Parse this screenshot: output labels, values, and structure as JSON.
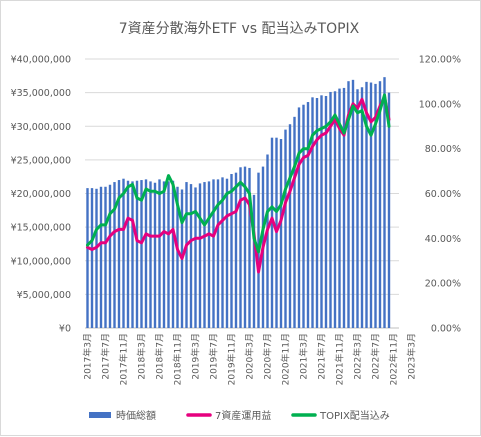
{
  "chart_data": {
    "type": "bar+line",
    "title": "7資産分散海外ETF vs 配当込みTOPIX",
    "y_left": {
      "range": [
        0,
        40000000
      ],
      "ticks": [
        "¥0",
        "¥5,000,000",
        "¥10,000,000",
        "¥15,000,000",
        "¥20,000,000",
        "¥25,000,000",
        "¥30,000,000",
        "¥35,000,000",
        "¥40,000,000"
      ]
    },
    "y_right": {
      "range": [
        0,
        1.2
      ],
      "ticks": [
        "0.00%",
        "20.00%",
        "40.00%",
        "60.00%",
        "80.00%",
        "100.00%",
        "120.00%"
      ]
    },
    "x_tick_labels": [
      "2017年3月",
      "2017年7月",
      "2017年11月",
      "2018年3月",
      "2018年7月",
      "2018年11月",
      "2019年3月",
      "2019年7月",
      "2019年11月",
      "2020年3月",
      "2020年7月",
      "2020年11月",
      "2021年3月",
      "2021年7月",
      "2021年11月",
      "2022年3月",
      "2022年7月",
      "2022年11月",
      "2023年3月"
    ],
    "legend_placement": "bottom",
    "grid": true,
    "series": [
      {
        "name": "時価総額",
        "type": "bar",
        "axis": "left",
        "color": "#4472c4",
        "values": [
          20800000,
          20800000,
          20700000,
          21000000,
          21000000,
          21300000,
          21700000,
          22000000,
          22200000,
          21900000,
          21800000,
          21900000,
          22000000,
          22100000,
          21800000,
          21600000,
          22100000,
          21800000,
          21800000,
          21900000,
          21000000,
          20600000,
          21700000,
          21400000,
          20900000,
          21500000,
          21700000,
          21800000,
          22100000,
          22100000,
          22400000,
          22200000,
          22900000,
          23100000,
          23900000,
          24000000,
          23800000,
          19800000,
          23100000,
          24000000,
          25800000,
          28300000,
          28300000,
          28100000,
          29500000,
          30300000,
          31400000,
          32800000,
          33200000,
          33600000,
          34300000,
          34200000,
          34600000,
          34500000,
          35100000,
          35200000,
          35600000,
          35700000,
          36700000,
          36900000,
          35500000,
          35800000,
          36600000,
          36500000,
          36300000,
          36700000,
          37300000,
          35000000
        ]
      },
      {
        "name": "7資産運用益",
        "type": "line",
        "axis": "right",
        "color": "#e6007e",
        "values": [
          0.36,
          0.35,
          0.36,
          0.38,
          0.38,
          0.41,
          0.43,
          0.44,
          0.44,
          0.49,
          0.48,
          0.39,
          0.38,
          0.42,
          0.41,
          0.41,
          0.41,
          0.43,
          0.42,
          0.44,
          0.35,
          0.31,
          0.37,
          0.39,
          0.4,
          0.4,
          0.41,
          0.42,
          0.41,
          0.46,
          0.48,
          0.5,
          0.51,
          0.52,
          0.57,
          0.58,
          0.55,
          0.42,
          0.25,
          0.36,
          0.44,
          0.49,
          0.43,
          0.48,
          0.56,
          0.61,
          0.67,
          0.73,
          0.76,
          0.77,
          0.81,
          0.84,
          0.86,
          0.87,
          0.9,
          0.93,
          0.89,
          0.86,
          0.95,
          1.0,
          0.98,
          1.02,
          0.96,
          0.92,
          0.94,
          0.99,
          1.03,
          0.93
        ]
      },
      {
        "name": "TOPIX配当込み",
        "type": "line",
        "axis": "right",
        "color": "#00b050",
        "values": [
          0.37,
          0.39,
          0.44,
          0.46,
          0.46,
          0.51,
          0.53,
          0.58,
          0.6,
          0.63,
          0.64,
          0.58,
          0.57,
          0.62,
          0.61,
          0.61,
          0.6,
          0.61,
          0.68,
          0.64,
          0.55,
          0.47,
          0.51,
          0.51,
          0.52,
          0.49,
          0.46,
          0.49,
          0.52,
          0.55,
          0.57,
          0.6,
          0.61,
          0.63,
          0.65,
          0.63,
          0.6,
          0.4,
          0.34,
          0.44,
          0.52,
          0.54,
          0.52,
          0.55,
          0.62,
          0.67,
          0.72,
          0.78,
          0.8,
          0.8,
          0.86,
          0.88,
          0.89,
          0.9,
          0.92,
          0.95,
          0.91,
          0.87,
          0.93,
          0.99,
          0.96,
          0.97,
          0.9,
          0.86,
          0.91,
          0.97,
          1.04,
          0.9
        ]
      }
    ]
  }
}
